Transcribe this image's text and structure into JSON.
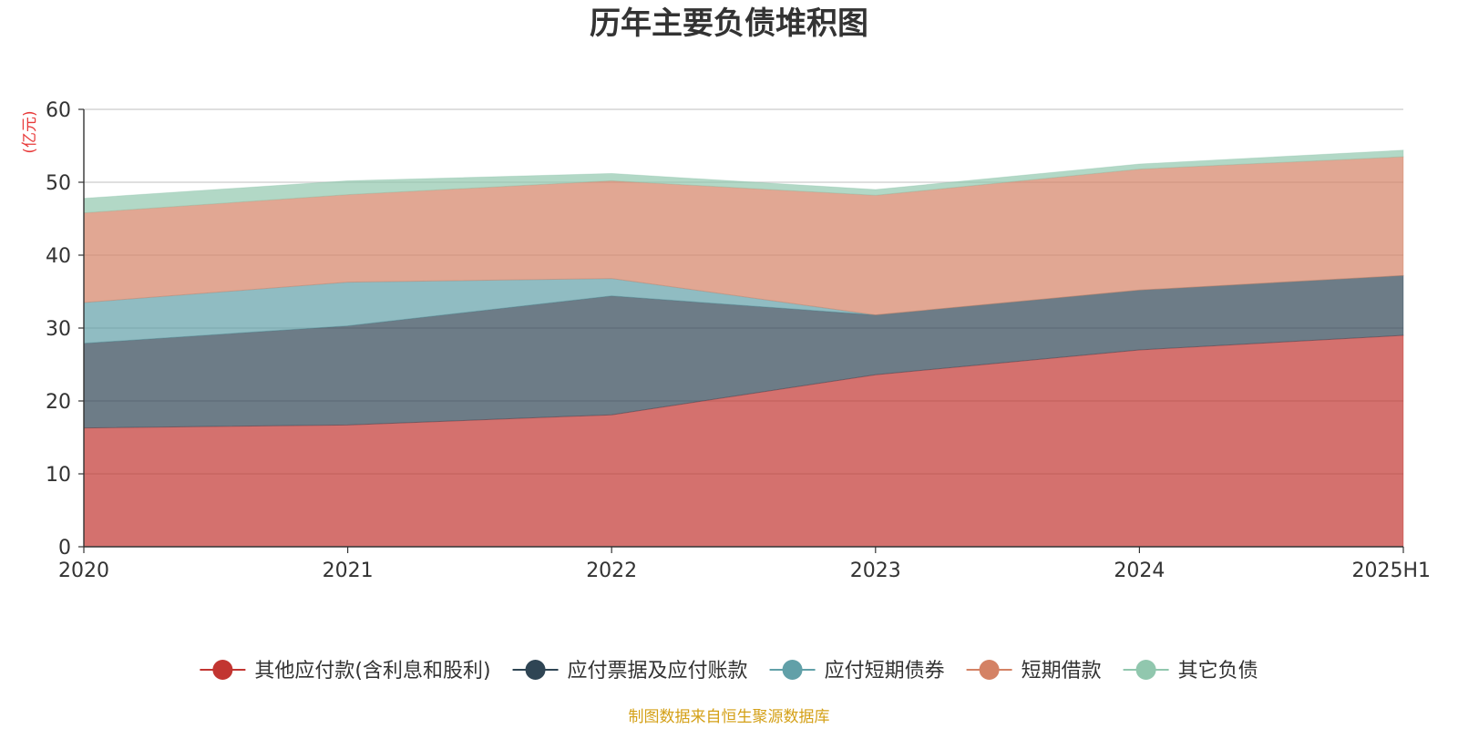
{
  "chart_data": {
    "type": "area",
    "stacked": true,
    "title": "历年主要负债堆积图",
    "ylabel": "(亿元)",
    "xlabel": "",
    "categories": [
      "2020",
      "2021",
      "2022",
      "2023",
      "2024",
      "2025H1"
    ],
    "ylim": [
      0,
      60
    ],
    "yticks": [
      0,
      10,
      20,
      30,
      40,
      50,
      60
    ],
    "grid": true,
    "legend_position": "bottom-center",
    "series": [
      {
        "name": "其他应付款(含利息和股利)",
        "color": "#c23531",
        "values": [
          16.3,
          16.7,
          18.1,
          23.6,
          27.0,
          29.0
        ]
      },
      {
        "name": "应付票据及应付账款",
        "color": "#2f4554",
        "values": [
          11.6,
          13.6,
          16.3,
          8.2,
          8.2,
          8.2
        ]
      },
      {
        "name": "应付短期债券",
        "color": "#61a0a8",
        "values": [
          5.6,
          6.0,
          2.4,
          0,
          0,
          0
        ]
      },
      {
        "name": "短期借款",
        "color": "#d48265",
        "values": [
          12.3,
          12.0,
          13.4,
          16.4,
          16.6,
          16.3
        ]
      },
      {
        "name": "其它负债",
        "color": "#91c7ae",
        "values": [
          2.0,
          1.9,
          1.0,
          0.8,
          0.7,
          0.9
        ]
      }
    ],
    "source": "制图数据来自恒生聚源数据库"
  }
}
